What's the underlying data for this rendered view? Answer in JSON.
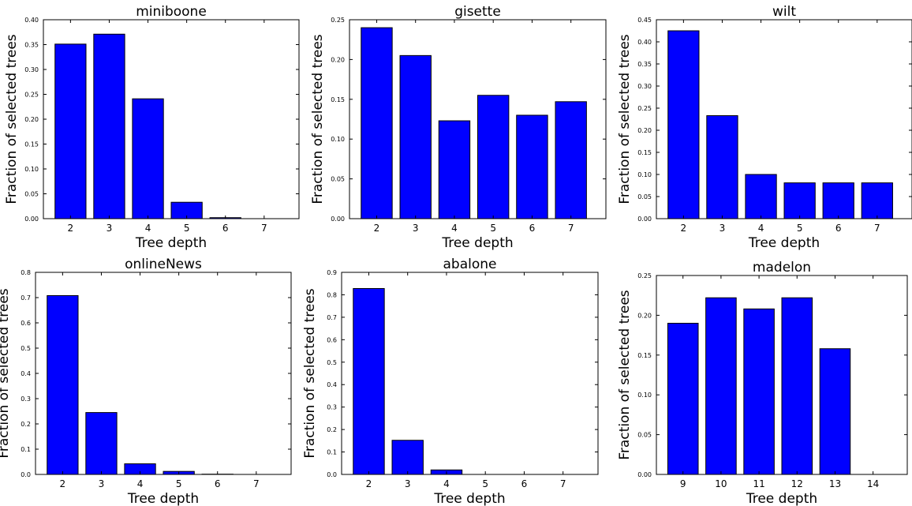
{
  "colors": {
    "bar": "#0000ff",
    "bar_edge": "#000000",
    "axes": "#000000",
    "background": "#ffffff"
  },
  "chart_data": [
    {
      "type": "bar",
      "title": "miniboone",
      "xlabel": "Tree depth",
      "ylabel": "Fraction of selected trees",
      "categories": [
        "2",
        "3",
        "4",
        "5",
        "6",
        "7"
      ],
      "values": [
        0.351,
        0.371,
        0.241,
        0.033,
        0.002,
        0.0
      ],
      "ylim": [
        0,
        0.4
      ],
      "yticks": [
        0.0,
        0.05,
        0.1,
        0.15,
        0.2,
        0.25,
        0.3,
        0.35,
        0.4
      ],
      "ytick_labels": [
        "0.00",
        "0.05",
        "0.10",
        "0.15",
        "0.20",
        "0.25",
        "0.30",
        "0.35",
        "0.40"
      ],
      "grid": false
    },
    {
      "type": "bar",
      "title": "gisette",
      "xlabel": "Tree depth",
      "ylabel": "Fraction of selected trees",
      "categories": [
        "2",
        "3",
        "4",
        "5",
        "6",
        "7"
      ],
      "values": [
        0.24,
        0.205,
        0.123,
        0.155,
        0.13,
        0.147
      ],
      "ylim": [
        0,
        0.25
      ],
      "yticks": [
        0.0,
        0.05,
        0.1,
        0.15,
        0.2,
        0.25
      ],
      "ytick_labels": [
        "0.00",
        "0.05",
        "0.10",
        "0.15",
        "0.20",
        "0.25"
      ],
      "grid": false
    },
    {
      "type": "bar",
      "title": "wilt",
      "xlabel": "Tree depth",
      "ylabel": "Fraction of selected trees",
      "categories": [
        "2",
        "3",
        "4",
        "5",
        "6",
        "7"
      ],
      "values": [
        0.425,
        0.233,
        0.1,
        0.081,
        0.081,
        0.081
      ],
      "ylim": [
        0,
        0.45
      ],
      "yticks": [
        0.0,
        0.05,
        0.1,
        0.15,
        0.2,
        0.25,
        0.3,
        0.35,
        0.4,
        0.45
      ],
      "ytick_labels": [
        "0.00",
        "0.05",
        "0.10",
        "0.15",
        "0.20",
        "0.25",
        "0.30",
        "0.35",
        "0.40",
        "0.45"
      ],
      "grid": false
    },
    {
      "type": "bar",
      "title": "onlineNews",
      "xlabel": "Tree depth",
      "ylabel": "Fraction of selected trees",
      "categories": [
        "2",
        "3",
        "4",
        "5",
        "6",
        "7"
      ],
      "values": [
        0.708,
        0.245,
        0.042,
        0.012,
        0.001,
        0.0
      ],
      "ylim": [
        0,
        0.8
      ],
      "yticks": [
        0.0,
        0.1,
        0.2,
        0.3,
        0.4,
        0.5,
        0.6,
        0.7,
        0.8
      ],
      "ytick_labels": [
        "0.0",
        "0.1",
        "0.2",
        "0.3",
        "0.4",
        "0.5",
        "0.6",
        "0.7",
        "0.8"
      ],
      "grid": false
    },
    {
      "type": "bar",
      "title": "abalone",
      "xlabel": "Tree depth",
      "ylabel": "Fraction of selected trees",
      "categories": [
        "2",
        "3",
        "4",
        "5",
        "6",
        "7"
      ],
      "values": [
        0.828,
        0.152,
        0.02,
        0.0,
        0.0,
        0.0
      ],
      "ylim": [
        0,
        0.9
      ],
      "yticks": [
        0.0,
        0.1,
        0.2,
        0.3,
        0.4,
        0.5,
        0.6,
        0.7,
        0.8,
        0.9
      ],
      "ytick_labels": [
        "0.0",
        "0.1",
        "0.2",
        "0.3",
        "0.4",
        "0.5",
        "0.6",
        "0.7",
        "0.8",
        "0.9"
      ],
      "grid": false
    },
    {
      "type": "bar",
      "title": "madelon",
      "xlabel": "Tree depth",
      "ylabel": "Fraction of selected trees",
      "categories": [
        "9",
        "10",
        "11",
        "12",
        "13",
        "14"
      ],
      "values": [
        0.19,
        0.222,
        0.208,
        0.222,
        0.158,
        0.0
      ],
      "ylim": [
        0,
        0.25
      ],
      "yticks": [
        0.0,
        0.05,
        0.1,
        0.15,
        0.2,
        0.25
      ],
      "ytick_labels": [
        "0.00",
        "0.05",
        "0.10",
        "0.15",
        "0.20",
        "0.25"
      ],
      "grid": false
    }
  ]
}
